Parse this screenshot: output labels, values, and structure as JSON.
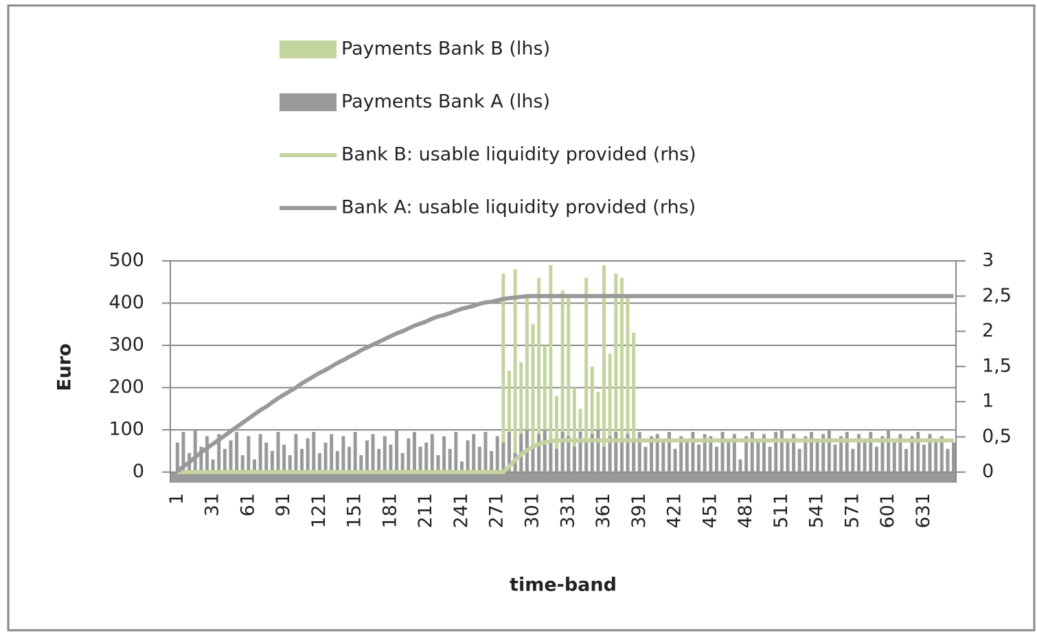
{
  "chart_data": {
    "type": "bar",
    "x_label": "time-band",
    "y_label": "Euro",
    "x": [
      1,
      6,
      11,
      16,
      21,
      26,
      31,
      36,
      41,
      46,
      51,
      56,
      61,
      66,
      71,
      76,
      81,
      86,
      91,
      96,
      101,
      106,
      111,
      116,
      121,
      126,
      131,
      136,
      141,
      146,
      151,
      156,
      161,
      166,
      171,
      176,
      181,
      186,
      191,
      196,
      201,
      206,
      211,
      216,
      221,
      226,
      231,
      236,
      241,
      246,
      251,
      256,
      261,
      266,
      271,
      276,
      281,
      286,
      291,
      296,
      301,
      306,
      311,
      316,
      321,
      326,
      331,
      336,
      341,
      346,
      351,
      356,
      361,
      366,
      371,
      376,
      381,
      386,
      391,
      396,
      401,
      406,
      411,
      416,
      421,
      426,
      431,
      436,
      441,
      446,
      451,
      456,
      461,
      466,
      471,
      476,
      481,
      486,
      491,
      496,
      501,
      506,
      511,
      516,
      521,
      526,
      531,
      536,
      541,
      546,
      551,
      556,
      561,
      566,
      571,
      576,
      581,
      586,
      591,
      596,
      601,
      606,
      611,
      616,
      621,
      626,
      631,
      636,
      641,
      646,
      651,
      656
    ],
    "xlim": [
      -5,
      658
    ],
    "xticks": [
      1,
      31,
      61,
      91,
      121,
      151,
      181,
      211,
      241,
      271,
      301,
      331,
      361,
      391,
      421,
      451,
      481,
      511,
      541,
      571,
      601,
      631
    ],
    "ylim": [
      -25,
      500
    ],
    "yticks": [
      0,
      100,
      200,
      300,
      400,
      500
    ],
    "y2lim": [
      -0.15,
      3
    ],
    "y2ticks": [
      0,
      {
        "value": 0.5,
        "label": "0,5"
      },
      1,
      {
        "value": 1.5,
        "label": "1,5"
      },
      2,
      {
        "value": 2.5,
        "label": "2,5"
      },
      3
    ],
    "grid": true,
    "series": [
      {
        "name": "Payments Bank B (lhs)",
        "type": "bar",
        "color": "#c4d49e",
        "values": [
          0,
          0,
          0,
          0,
          0,
          0,
          0,
          0,
          0,
          0,
          0,
          0,
          0,
          0,
          0,
          0,
          0,
          0,
          0,
          0,
          0,
          0,
          0,
          0,
          0,
          0,
          0,
          0,
          0,
          0,
          0,
          0,
          0,
          0,
          0,
          0,
          0,
          0,
          0,
          0,
          0,
          0,
          0,
          0,
          0,
          0,
          0,
          0,
          0,
          0,
          0,
          0,
          0,
          0,
          0,
          470,
          240,
          480,
          260,
          420,
          350,
          460,
          300,
          490,
          180,
          430,
          420,
          200,
          150,
          460,
          250,
          190,
          490,
          280,
          470,
          460,
          420,
          330,
          0,
          0,
          0,
          0,
          0,
          0,
          0,
          0,
          0,
          0,
          0,
          0,
          0,
          0,
          0,
          0,
          0,
          0,
          0,
          0,
          0,
          0,
          0,
          0,
          0,
          0,
          0,
          0,
          0,
          0,
          0,
          0,
          0,
          0,
          0,
          0,
          0,
          0,
          0,
          0,
          0,
          0,
          0,
          0,
          0,
          0,
          0,
          0,
          0,
          0,
          0,
          0,
          0,
          0
        ]
      },
      {
        "name": "Payments Bank A (lhs)",
        "type": "bar",
        "color": "#999999",
        "values": [
          70,
          95,
          45,
          100,
          60,
          85,
          30,
          90,
          55,
          75,
          95,
          40,
          85,
          30,
          90,
          70,
          50,
          95,
          65,
          40,
          90,
          55,
          80,
          95,
          45,
          70,
          90,
          50,
          85,
          60,
          95,
          40,
          75,
          90,
          55,
          85,
          65,
          100,
          45,
          80,
          95,
          60,
          70,
          90,
          40,
          85,
          55,
          95,
          25,
          75,
          90,
          60,
          95,
          50,
          85,
          70,
          95,
          45,
          90,
          100,
          65,
          90,
          100,
          75,
          55,
          95,
          85,
          60,
          95,
          75,
          90,
          100,
          60,
          85,
          95,
          70,
          90,
          80,
          95,
          60,
          85,
          90,
          70,
          95,
          55,
          85,
          75,
          95,
          65,
          90,
          85,
          60,
          95,
          75,
          90,
          30,
          85,
          95,
          70,
          90,
          60,
          95,
          100,
          75,
          90,
          55,
          85,
          95,
          70,
          90,
          100,
          65,
          85,
          95,
          55,
          90,
          75,
          95,
          60,
          85,
          100,
          70,
          90,
          55,
          85,
          95,
          65,
          90,
          75,
          85,
          55,
          70
        ]
      },
      {
        "name": "Bank B: usable liquidity provided (rhs)",
        "type": "line",
        "axis": "y2",
        "color": "#c4d49e",
        "values": [
          0,
          0,
          0,
          0,
          0,
          0,
          0,
          0,
          0,
          0,
          0,
          0,
          0,
          0,
          0,
          0,
          0,
          0,
          0,
          0,
          0,
          0,
          0,
          0,
          0,
          0,
          0,
          0,
          0,
          0,
          0,
          0,
          0,
          0,
          0,
          0,
          0,
          0,
          0,
          0,
          0,
          0,
          0,
          0,
          0,
          0,
          0,
          0,
          0,
          0,
          0,
          0,
          0,
          0,
          0,
          0,
          0.08,
          0.17,
          0.25,
          0.31,
          0.36,
          0.4,
          0.42,
          0.44,
          0.45,
          0.45,
          0.45,
          0.45,
          0.45,
          0.45,
          0.45,
          0.45,
          0.45,
          0.45,
          0.45,
          0.45,
          0.45,
          0.45,
          0.45,
          0.45,
          0.45,
          0.45,
          0.45,
          0.45,
          0.45,
          0.45,
          0.45,
          0.45,
          0.45,
          0.45,
          0.45,
          0.45,
          0.45,
          0.45,
          0.45,
          0.45,
          0.45,
          0.45,
          0.45,
          0.45,
          0.45,
          0.45,
          0.45,
          0.45,
          0.45,
          0.45,
          0.45,
          0.45,
          0.45,
          0.45,
          0.45,
          0.45,
          0.45,
          0.45,
          0.45,
          0.45,
          0.45,
          0.45,
          0.45,
          0.45,
          0.45,
          0.45,
          0.45,
          0.45,
          0.45,
          0.45,
          0.45,
          0.45,
          0.45,
          0.45,
          0.45,
          0.45
        ]
      },
      {
        "name": "Bank A: usable liquidity provided (rhs)",
        "type": "line",
        "axis": "y2",
        "color": "#999999",
        "values": [
          0.01,
          0.08,
          0.14,
          0.21,
          0.28,
          0.34,
          0.4,
          0.46,
          0.52,
          0.58,
          0.64,
          0.7,
          0.76,
          0.82,
          0.88,
          0.93,
          0.99,
          1.05,
          1.1,
          1.15,
          1.2,
          1.26,
          1.31,
          1.36,
          1.41,
          1.45,
          1.5,
          1.55,
          1.59,
          1.64,
          1.68,
          1.73,
          1.77,
          1.81,
          1.85,
          1.89,
          1.93,
          1.97,
          2,
          2.04,
          2.08,
          2.11,
          2.14,
          2.18,
          2.21,
          2.23,
          2.26,
          2.29,
          2.32,
          2.34,
          2.36,
          2.39,
          2.41,
          2.42,
          2.44,
          2.46,
          2.47,
          2.48,
          2.49,
          2.5,
          2.5,
          2.5,
          2.5,
          2.5,
          2.5,
          2.5,
          2.5,
          2.5,
          2.5,
          2.5,
          2.5,
          2.5,
          2.5,
          2.5,
          2.5,
          2.5,
          2.5,
          2.5,
          2.5,
          2.5,
          2.5,
          2.5,
          2.5,
          2.5,
          2.5,
          2.5,
          2.5,
          2.5,
          2.5,
          2.5,
          2.5,
          2.5,
          2.5,
          2.5,
          2.5,
          2.5,
          2.5,
          2.5,
          2.5,
          2.5,
          2.5,
          2.5,
          2.5,
          2.5,
          2.5,
          2.5,
          2.5,
          2.5,
          2.5,
          2.5,
          2.5,
          2.5,
          2.5,
          2.5,
          2.5,
          2.5,
          2.5,
          2.5,
          2.5,
          2.5,
          2.5,
          2.5,
          2.5,
          2.5,
          2.5,
          2.5,
          2.5,
          2.5,
          2.5,
          2.5,
          2.5,
          2.5
        ]
      }
    ]
  }
}
